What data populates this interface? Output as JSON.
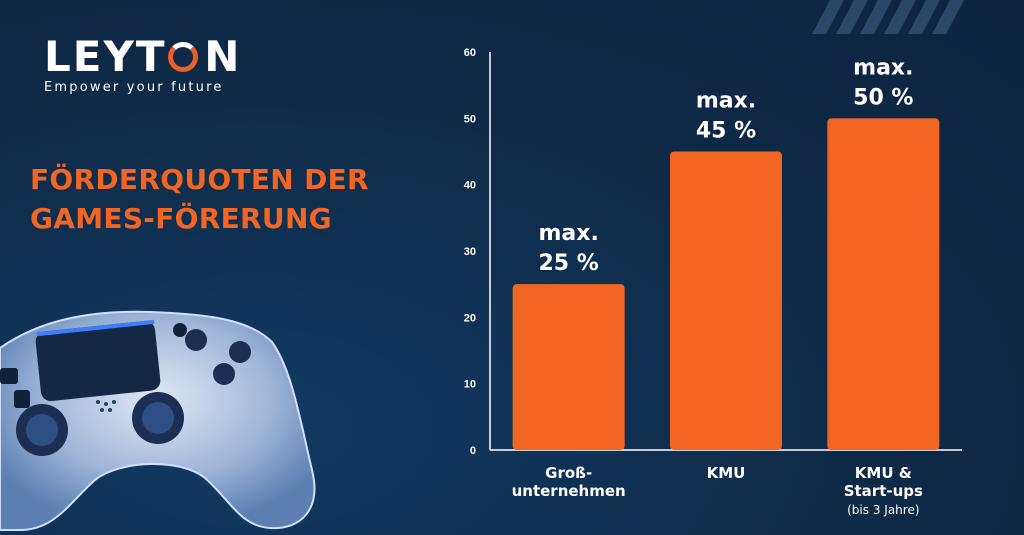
{
  "brand": {
    "name_prefix": "LEYT",
    "name_o": "O",
    "name_suffix": "N",
    "tagline": "Empower your future",
    "accent_color": "#f26522",
    "background_color": "#0f2a47"
  },
  "headline": {
    "line1": "FÖRDERQUOTEN DER",
    "line2": "GAMES-FÖRERUNG"
  },
  "illustration": {
    "icon": "gamepad-controller-icon"
  },
  "chart_data": {
    "type": "bar",
    "categories": [
      "Groß-\nunternehmen",
      "KMU",
      "KMU &\nStart-ups"
    ],
    "category_notes": [
      "",
      "",
      "(bis 3 Jahre)"
    ],
    "values": [
      25,
      45,
      50
    ],
    "data_labels": [
      [
        "max.",
        "25 %"
      ],
      [
        "max.",
        "45 %"
      ],
      [
        "max.",
        "50 %"
      ]
    ],
    "ylim": [
      0,
      60
    ],
    "yticks": [
      0,
      10,
      20,
      30,
      40,
      50,
      60
    ],
    "bar_color": "#f26522",
    "grid": false,
    "legend": "none",
    "title": "",
    "xlabel": "",
    "ylabel": ""
  }
}
